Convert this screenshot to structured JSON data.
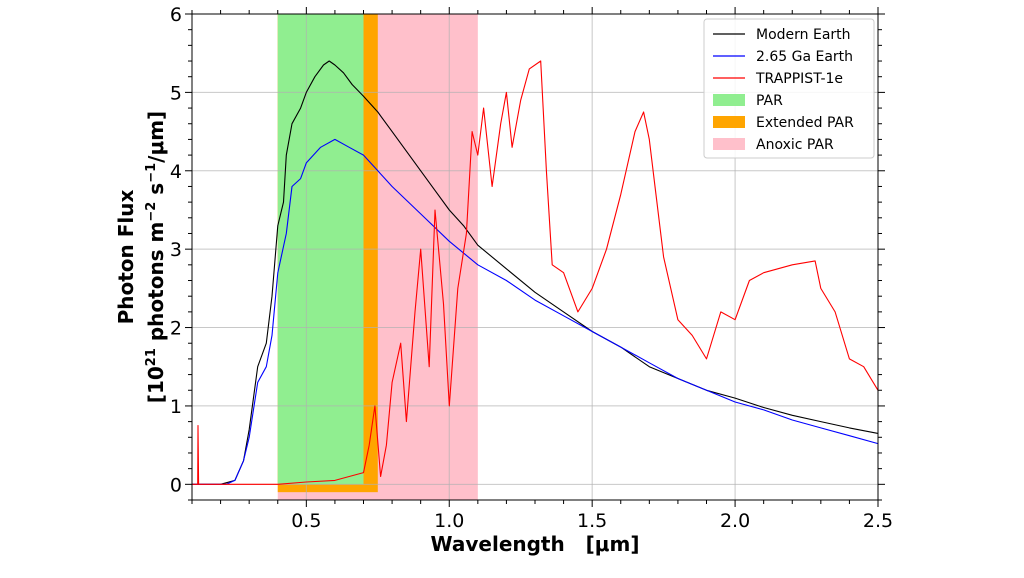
{
  "chart_data": {
    "type": "line",
    "title": "",
    "xlabel": "Wavelength   [μm]",
    "ylabel": {
      "line1": "Photon Flux",
      "line2_prefix": "[10",
      "line2_exp1": "21",
      "line2_mid1": " photons m",
      "line2_exp2": "−2",
      "line2_mid2": " s",
      "line2_exp3": "−1",
      "line2_suffix": "/μm]"
    },
    "xlim": [
      0.1,
      2.5
    ],
    "ylim": [
      -0.2,
      6
    ],
    "xticks": [
      "0.5",
      "1.0",
      "1.5",
      "2.0",
      "2.5"
    ],
    "xtick_values": [
      0.5,
      1.0,
      1.5,
      2.0,
      2.5
    ],
    "yticks": [
      "0",
      "1",
      "2",
      "3",
      "4",
      "5",
      "6"
    ],
    "ytick_values": [
      0,
      1,
      2,
      3,
      4,
      5,
      6
    ],
    "grid": true,
    "legend_position": "top-right",
    "regions": [
      {
        "name": "Anoxic PAR",
        "x": [
          0.4,
          1.1
        ],
        "color": "#ffc0cb"
      },
      {
        "name": "Extended PAR",
        "x": [
          0.4,
          0.75
        ],
        "color": "#ffa500"
      },
      {
        "name": "PAR",
        "x": [
          0.4,
          0.7
        ],
        "color": "#90ee90"
      }
    ],
    "series": [
      {
        "name": "Modern Earth",
        "color": "#000000",
        "x": [
          0.1,
          0.2,
          0.25,
          0.28,
          0.3,
          0.33,
          0.36,
          0.38,
          0.4,
          0.42,
          0.43,
          0.45,
          0.48,
          0.5,
          0.53,
          0.56,
          0.58,
          0.6,
          0.63,
          0.66,
          0.7,
          0.75,
          0.8,
          0.85,
          0.9,
          0.95,
          1.0,
          1.05,
          1.1,
          1.2,
          1.3,
          1.4,
          1.5,
          1.6,
          1.7,
          1.8,
          1.9,
          2.0,
          2.1,
          2.2,
          2.3,
          2.4,
          2.5
        ],
        "y": [
          0,
          0,
          0.05,
          0.3,
          0.7,
          1.5,
          1.8,
          2.4,
          3.3,
          3.6,
          4.2,
          4.6,
          4.8,
          5.0,
          5.2,
          5.35,
          5.4,
          5.35,
          5.25,
          5.1,
          4.95,
          4.75,
          4.5,
          4.25,
          4.0,
          3.75,
          3.5,
          3.3,
          3.05,
          2.75,
          2.45,
          2.2,
          1.95,
          1.75,
          1.5,
          1.35,
          1.2,
          1.1,
          0.98,
          0.88,
          0.8,
          0.72,
          0.65
        ]
      },
      {
        "name": "2.65 Ga Earth",
        "color": "#0000ff",
        "x": [
          0.1,
          0.22,
          0.25,
          0.28,
          0.3,
          0.33,
          0.36,
          0.38,
          0.4,
          0.43,
          0.45,
          0.48,
          0.5,
          0.55,
          0.6,
          0.65,
          0.7,
          0.75,
          0.8,
          0.9,
          1.0,
          1.1,
          1.2,
          1.3,
          1.4,
          1.5,
          1.6,
          1.7,
          1.8,
          1.9,
          2.0,
          2.1,
          2.2,
          2.3,
          2.4,
          2.5
        ],
        "y": [
          0,
          0,
          0.05,
          0.3,
          0.6,
          1.3,
          1.5,
          1.9,
          2.7,
          3.2,
          3.8,
          3.9,
          4.1,
          4.3,
          4.4,
          4.3,
          4.2,
          4.0,
          3.8,
          3.45,
          3.1,
          2.8,
          2.6,
          2.35,
          2.15,
          1.95,
          1.75,
          1.55,
          1.35,
          1.2,
          1.05,
          0.95,
          0.82,
          0.72,
          0.62,
          0.52
        ]
      },
      {
        "name": "TRAPPIST-1e",
        "color": "#ff0000",
        "x": [
          0.1,
          0.12,
          0.121,
          0.123,
          0.4,
          0.5,
          0.6,
          0.7,
          0.72,
          0.74,
          0.76,
          0.78,
          0.8,
          0.83,
          0.85,
          0.88,
          0.9,
          0.93,
          0.95,
          0.98,
          1.0,
          1.03,
          1.06,
          1.08,
          1.1,
          1.12,
          1.15,
          1.18,
          1.2,
          1.22,
          1.25,
          1.28,
          1.32,
          1.34,
          1.36,
          1.4,
          1.45,
          1.5,
          1.55,
          1.6,
          1.65,
          1.68,
          1.7,
          1.72,
          1.75,
          1.8,
          1.85,
          1.9,
          1.95,
          2.0,
          2.05,
          2.1,
          2.2,
          2.28,
          2.3,
          2.35,
          2.4,
          2.45,
          2.5
        ],
        "y": [
          0,
          0,
          0.75,
          0,
          0,
          0.03,
          0.05,
          0.15,
          0.5,
          1.0,
          0.1,
          0.5,
          1.3,
          1.8,
          0.8,
          2.2,
          3.0,
          1.5,
          3.5,
          2.3,
          1.0,
          2.5,
          3.2,
          4.5,
          4.2,
          4.8,
          3.8,
          4.6,
          5.0,
          4.3,
          4.9,
          5.3,
          5.4,
          4.0,
          2.8,
          2.7,
          2.2,
          2.5,
          3.0,
          3.7,
          4.5,
          4.75,
          4.4,
          3.8,
          2.9,
          2.1,
          1.9,
          1.6,
          2.2,
          2.1,
          2.6,
          2.7,
          2.8,
          2.85,
          2.5,
          2.2,
          1.6,
          1.5,
          1.2
        ]
      }
    ]
  }
}
